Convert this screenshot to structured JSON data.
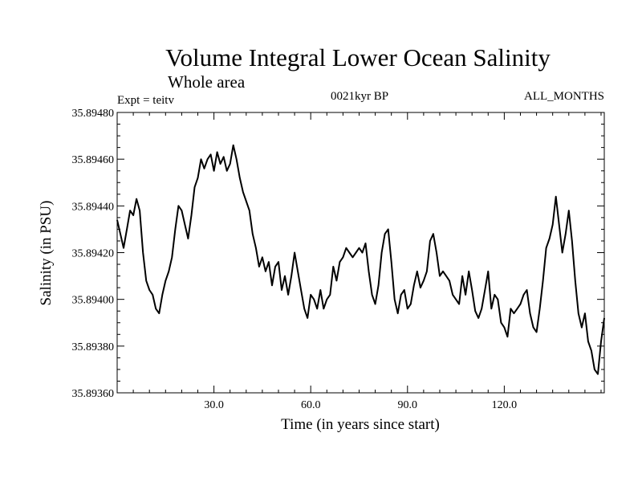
{
  "chart_data": {
    "type": "line",
    "title": "Volume Integral Lower Ocean Salinity",
    "subtitle": "Whole area",
    "experiment": "Expt = teitv",
    "period": "0021kyr BP",
    "months": "ALL_MONTHS",
    "xlabel": "Time (in years since start)",
    "ylabel": "Salinity (in PSU)",
    "xlim": [
      0,
      151
    ],
    "ylim": [
      35.8936,
      35.8948
    ],
    "xticks": [
      30,
      60,
      90,
      120
    ],
    "xtick_labels": [
      "30.0",
      "60.0",
      "90.0",
      "120.0"
    ],
    "yticks": [
      35.8936,
      35.8938,
      35.894,
      35.8942,
      35.8944,
      35.8946,
      35.8948
    ],
    "ytick_labels": [
      "35.89360",
      "35.89380",
      "35.89400",
      "35.89420",
      "35.89440",
      "35.89460",
      "35.89480"
    ],
    "grid": false,
    "series": [
      {
        "name": "Salinity",
        "x": [
          0,
          1,
          2,
          3,
          4,
          5,
          6,
          7,
          8,
          9,
          10,
          11,
          12,
          13,
          14,
          15,
          16,
          17,
          18,
          19,
          20,
          21,
          22,
          23,
          24,
          25,
          26,
          27,
          28,
          29,
          30,
          31,
          32,
          33,
          34,
          35,
          36,
          37,
          38,
          39,
          40,
          41,
          42,
          43,
          44,
          45,
          46,
          47,
          48,
          49,
          50,
          51,
          52,
          53,
          54,
          55,
          56,
          57,
          58,
          59,
          60,
          61,
          62,
          63,
          64,
          65,
          66,
          67,
          68,
          69,
          70,
          71,
          72,
          73,
          74,
          75,
          76,
          77,
          78,
          79,
          80,
          81,
          82,
          83,
          84,
          85,
          86,
          87,
          88,
          89,
          90,
          91,
          92,
          93,
          94,
          95,
          96,
          97,
          98,
          99,
          100,
          101,
          102,
          103,
          104,
          105,
          106,
          107,
          108,
          109,
          110,
          111,
          112,
          113,
          114,
          115,
          116,
          117,
          118,
          119,
          120,
          121,
          122,
          123,
          124,
          125,
          126,
          127,
          128,
          129,
          130,
          131,
          132,
          133,
          134,
          135,
          136,
          137,
          138,
          139,
          140,
          141,
          142,
          143,
          144,
          145,
          146,
          147,
          148,
          149,
          150,
          151
        ],
        "values": [
          35.89434,
          35.89428,
          35.89422,
          35.8943,
          35.89438,
          35.89436,
          35.89443,
          35.89438,
          35.8942,
          35.89408,
          35.89404,
          35.89402,
          35.89396,
          35.89394,
          35.89402,
          35.89408,
          35.89412,
          35.89418,
          35.8943,
          35.8944,
          35.89438,
          35.89432,
          35.89426,
          35.89436,
          35.89448,
          35.89452,
          35.8946,
          35.89456,
          35.8946,
          35.89462,
          35.89455,
          35.89463,
          35.89458,
          35.89461,
          35.89455,
          35.89458,
          35.89466,
          35.8946,
          35.89452,
          35.89446,
          35.89442,
          35.89438,
          35.89428,
          35.89422,
          35.89414,
          35.89418,
          35.89412,
          35.89416,
          35.89406,
          35.89414,
          35.89416,
          35.89404,
          35.8941,
          35.89402,
          35.8941,
          35.8942,
          35.89412,
          35.89404,
          35.89396,
          35.89392,
          35.89402,
          35.894,
          35.89396,
          35.89404,
          35.89396,
          35.894,
          35.89402,
          35.89414,
          35.89408,
          35.89416,
          35.89418,
          35.89422,
          35.8942,
          35.89418,
          35.8942,
          35.89422,
          35.8942,
          35.89424,
          35.89412,
          35.89402,
          35.89398,
          35.89406,
          35.8942,
          35.89428,
          35.8943,
          35.89416,
          35.894,
          35.89394,
          35.89402,
          35.89404,
          35.89396,
          35.89398,
          35.89406,
          35.89412,
          35.89405,
          35.89408,
          35.89412,
          35.89425,
          35.89428,
          35.8942,
          35.8941,
          35.89412,
          35.8941,
          35.89408,
          35.89402,
          35.894,
          35.89398,
          35.8941,
          35.89402,
          35.89412,
          35.89404,
          35.89395,
          35.89392,
          35.89396,
          35.89404,
          35.89412,
          35.89396,
          35.89402,
          35.894,
          35.8939,
          35.89388,
          35.89384,
          35.89396,
          35.89394,
          35.89396,
          35.89398,
          35.89402,
          35.89404,
          35.89394,
          35.89388,
          35.89386,
          35.89396,
          35.89408,
          35.89422,
          35.89426,
          35.89432,
          35.89444,
          35.89432,
          35.8942,
          35.89428,
          35.89438,
          35.89425,
          35.89408,
          35.89394,
          35.89388,
          35.89394,
          35.89382,
          35.89378,
          35.8937,
          35.89368,
          35.89382,
          35.89392
        ]
      }
    ]
  }
}
